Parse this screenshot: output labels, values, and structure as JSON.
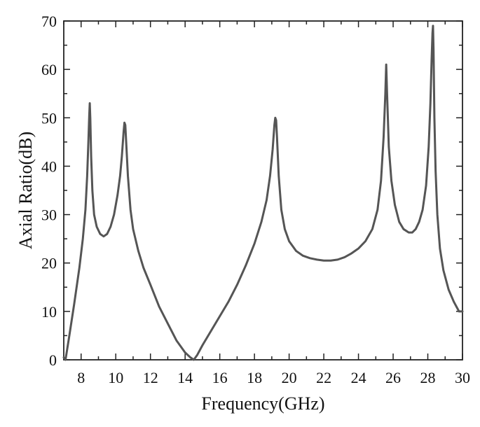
{
  "chart_data": {
    "type": "line",
    "title": "",
    "xlabel": "Frequency(GHz)",
    "ylabel": "Axial Ratio(dB)",
    "xlim": [
      7,
      30
    ],
    "ylim": [
      0,
      70
    ],
    "x_ticks": [
      8,
      10,
      12,
      14,
      16,
      18,
      20,
      22,
      24,
      26,
      28,
      30
    ],
    "y_ticks": [
      0,
      10,
      20,
      30,
      40,
      50,
      60,
      70
    ],
    "grid": false,
    "legend": "none",
    "line_color": "#555555",
    "series": [
      {
        "x": [
          7.0,
          7.1,
          7.3,
          7.6,
          7.9,
          8.1,
          8.25,
          8.35,
          8.42,
          8.47,
          8.5,
          8.53,
          8.58,
          8.65,
          8.75,
          8.9,
          9.1,
          9.3,
          9.5,
          9.7,
          9.9,
          10.1,
          10.25,
          10.35,
          10.45,
          10.5,
          10.55,
          10.6,
          10.7,
          10.85,
          11.0,
          11.3,
          11.6,
          12.0,
          12.5,
          13.0,
          13.5,
          14.0,
          14.3,
          14.5,
          14.7,
          15.0,
          15.5,
          16.0,
          16.5,
          17.0,
          17.5,
          18.0,
          18.4,
          18.7,
          18.9,
          19.05,
          19.15,
          19.2,
          19.25,
          19.3,
          19.4,
          19.55,
          19.75,
          20.0,
          20.4,
          20.8,
          21.2,
          21.6,
          22.0,
          22.4,
          22.8,
          23.2,
          23.6,
          24.0,
          24.4,
          24.8,
          25.1,
          25.3,
          25.45,
          25.55,
          25.6,
          25.65,
          25.75,
          25.9,
          26.1,
          26.35,
          26.6,
          26.9,
          27.1,
          27.3,
          27.5,
          27.7,
          27.9,
          28.05,
          28.15,
          28.22,
          28.27,
          28.3,
          28.33,
          28.38,
          28.45,
          28.55,
          28.7,
          28.9,
          29.2,
          29.5,
          29.8,
          30.0
        ],
        "y": [
          0.5,
          0.0,
          4.5,
          11.5,
          19.0,
          25.0,
          31.0,
          38.0,
          45.0,
          50.5,
          53.0,
          50.0,
          42.0,
          35.0,
          30.0,
          27.5,
          26.0,
          25.5,
          26.0,
          27.5,
          30.0,
          34.0,
          38.0,
          42.0,
          47.0,
          49.0,
          48.5,
          45.0,
          38.0,
          31.0,
          27.0,
          22.5,
          19.0,
          15.5,
          11.0,
          7.5,
          4.0,
          1.5,
          0.5,
          0.0,
          1.0,
          3.0,
          6.0,
          9.0,
          12.0,
          15.5,
          19.5,
          24.0,
          28.5,
          33.0,
          38.0,
          43.5,
          48.5,
          50.0,
          49.5,
          46.0,
          38.0,
          31.0,
          27.0,
          24.5,
          22.5,
          21.5,
          21.0,
          20.7,
          20.5,
          20.5,
          20.7,
          21.2,
          22.0,
          23.0,
          24.5,
          27.0,
          31.0,
          37.0,
          46.0,
          55.0,
          61.0,
          55.0,
          44.0,
          37.0,
          32.0,
          28.5,
          27.0,
          26.3,
          26.3,
          27.0,
          28.5,
          31.0,
          36.0,
          44.0,
          53.0,
          62.0,
          67.5,
          69.0,
          64.0,
          50.0,
          39.0,
          30.0,
          23.0,
          18.5,
          14.5,
          12.0,
          10.0,
          10.0
        ]
      }
    ]
  }
}
